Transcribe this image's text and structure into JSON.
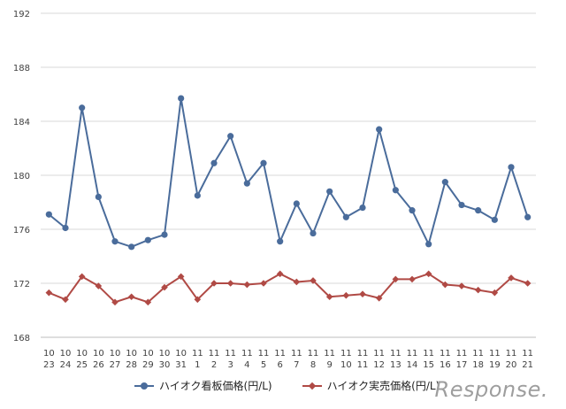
{
  "chart_data": {
    "type": "line",
    "title": "",
    "xlabel": "",
    "ylabel": "",
    "ylim": [
      168,
      192
    ],
    "yticks": [
      168,
      172,
      176,
      180,
      184,
      188,
      192
    ],
    "grid": true,
    "legend_position": "bottom",
    "categories": [
      {
        "month": "10",
        "day": "23"
      },
      {
        "month": "10",
        "day": "24"
      },
      {
        "month": "10",
        "day": "25"
      },
      {
        "month": "10",
        "day": "26"
      },
      {
        "month": "10",
        "day": "27"
      },
      {
        "month": "10",
        "day": "28"
      },
      {
        "month": "10",
        "day": "29"
      },
      {
        "month": "10",
        "day": "30"
      },
      {
        "month": "10",
        "day": "31"
      },
      {
        "month": "11",
        "day": "1"
      },
      {
        "month": "11",
        "day": "2"
      },
      {
        "month": "11",
        "day": "3"
      },
      {
        "month": "11",
        "day": "4"
      },
      {
        "month": "11",
        "day": "5"
      },
      {
        "month": "11",
        "day": "6"
      },
      {
        "month": "11",
        "day": "7"
      },
      {
        "month": "11",
        "day": "8"
      },
      {
        "month": "11",
        "day": "9"
      },
      {
        "month": "11",
        "day": "10"
      },
      {
        "month": "11",
        "day": "11"
      },
      {
        "month": "11",
        "day": "12"
      },
      {
        "month": "11",
        "day": "13"
      },
      {
        "month": "11",
        "day": "14"
      },
      {
        "month": "11",
        "day": "15"
      },
      {
        "month": "11",
        "day": "16"
      },
      {
        "month": "11",
        "day": "17"
      },
      {
        "month": "11",
        "day": "18"
      },
      {
        "month": "11",
        "day": "19"
      },
      {
        "month": "11",
        "day": "20"
      },
      {
        "month": "11",
        "day": "21"
      }
    ],
    "series": [
      {
        "name": "ハイオク看板価格(円/L)",
        "color": "#4a6c9b",
        "marker": "circle",
        "values": [
          177.1,
          176.1,
          185.0,
          178.4,
          175.1,
          174.7,
          175.2,
          175.6,
          185.7,
          178.5,
          180.9,
          182.9,
          179.4,
          180.9,
          175.1,
          177.9,
          175.7,
          178.8,
          176.9,
          177.6,
          183.4,
          178.9,
          177.4,
          174.9,
          179.5,
          177.8,
          177.4,
          176.7,
          180.6,
          176.9
        ]
      },
      {
        "name": "ハイオク実売価格(円/L)",
        "color": "#b04a45",
        "marker": "diamond",
        "values": [
          171.3,
          170.8,
          172.5,
          171.8,
          170.6,
          171.0,
          170.6,
          171.7,
          172.5,
          170.8,
          172.0,
          172.0,
          171.9,
          172.0,
          172.7,
          172.1,
          172.2,
          171.0,
          171.1,
          171.2,
          170.9,
          172.3,
          172.3,
          172.7,
          171.9,
          171.8,
          171.5,
          171.3,
          172.4,
          172.0
        ]
      }
    ]
  },
  "watermark": "Response."
}
